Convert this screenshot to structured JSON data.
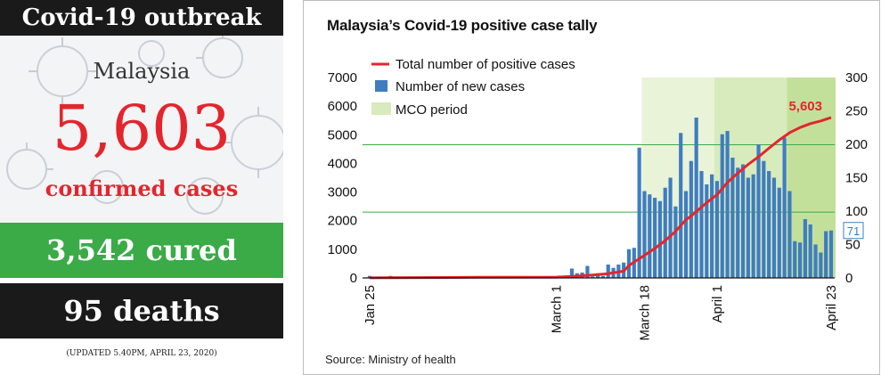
{
  "summary": {
    "title": "Covid-19 outbreak",
    "country": "Malaysia",
    "total": "5,603",
    "confirmed_label": "confirmed cases",
    "cured": "3,542 cured",
    "deaths": "95 deaths",
    "updated": "(UPDATED 5.40PM, APRIL 23, 2020)"
  },
  "colors": {
    "red": "#e3262d",
    "blue": "#3f7dc0",
    "green": "#3aab47",
    "mco_light": "#e9f3d8",
    "mco_mid": "#d8ebbd",
    "mco_dark": "#c3e09a",
    "gridline": "#3aab47"
  },
  "source": "Source: Ministry of health",
  "chart_data": {
    "type": "bar",
    "title": "Malaysia’s Covid-19 positive case tally",
    "legend": {
      "line": "Total number of positive cases",
      "bars": "Number of new cases",
      "band": "MCO period",
      "placement": "top-left"
    },
    "y_left": {
      "ticks": [
        "0",
        "1000",
        "2000",
        "3000",
        "4000",
        "5000",
        "6000",
        "7000"
      ],
      "range": [
        0,
        7000
      ]
    },
    "y_right": {
      "ticks": [
        "0",
        "50",
        "100",
        "150",
        "200",
        "250",
        "300"
      ],
      "range": [
        0,
        300
      ]
    },
    "x_tick_labels": [
      "Jan 25",
      "March 1",
      "March 18",
      "April 1",
      "April 23"
    ],
    "start": "Jan 25",
    "end": "April 23",
    "mco_start": "March 18",
    "mco_phase2_start": "April 1",
    "mco_phase3_start": "April 15",
    "new_cases_note": "bar heights read against right axis",
    "new_cases": [
      {
        "date": "Jan 25",
        "value": 3
      },
      {
        "date": "Jan 26",
        "value": 1
      },
      {
        "date": "Jan 27",
        "value": 0
      },
      {
        "date": "Jan 28",
        "value": 0
      },
      {
        "date": "Jan 29",
        "value": 3
      },
      {
        "date": "Jan 30",
        "value": 0
      },
      {
        "date": "Jan 31",
        "value": 0
      },
      {
        "date": "Feb 1",
        "value": 0
      },
      {
        "date": "Feb 2",
        "value": 0
      },
      {
        "date": "Feb 3",
        "value": 2
      },
      {
        "date": "Feb 4",
        "value": 1
      },
      {
        "date": "Feb 5",
        "value": 1
      },
      {
        "date": "Feb 6",
        "value": 2
      },
      {
        "date": "Feb 7",
        "value": 0
      },
      {
        "date": "Feb 8",
        "value": 1
      },
      {
        "date": "Feb 9",
        "value": 1
      },
      {
        "date": "Feb 10",
        "value": 0
      },
      {
        "date": "Feb 11",
        "value": 0
      },
      {
        "date": "Feb 12",
        "value": 0
      },
      {
        "date": "Feb 13",
        "value": 0
      },
      {
        "date": "Feb 14",
        "value": 0
      },
      {
        "date": "Feb 15",
        "value": 1
      },
      {
        "date": "Feb 16",
        "value": 0
      },
      {
        "date": "Feb 17",
        "value": 0
      },
      {
        "date": "Feb 18",
        "value": 0
      },
      {
        "date": "Feb 19",
        "value": 0
      },
      {
        "date": "Feb 20",
        "value": 0
      },
      {
        "date": "Feb 21",
        "value": 0
      },
      {
        "date": "Feb 22",
        "value": 0
      },
      {
        "date": "Feb 23",
        "value": 0
      },
      {
        "date": "Feb 24",
        "value": 0
      },
      {
        "date": "Feb 25",
        "value": 0
      },
      {
        "date": "Feb 26",
        "value": 0
      },
      {
        "date": "Feb 27",
        "value": 1
      },
      {
        "date": "Feb 28",
        "value": 1
      },
      {
        "date": "Feb 29",
        "value": 0
      },
      {
        "date": "Mar 1",
        "value": 0
      },
      {
        "date": "Mar 2",
        "value": 0
      },
      {
        "date": "Mar 3",
        "value": 0
      },
      {
        "date": "Mar 4",
        "value": 14
      },
      {
        "date": "Mar 5",
        "value": 7
      },
      {
        "date": "Mar 6",
        "value": 8
      },
      {
        "date": "Mar 7",
        "value": 18
      },
      {
        "date": "Mar 8",
        "value": 2
      },
      {
        "date": "Mar 9",
        "value": 7
      },
      {
        "date": "Mar 10",
        "value": 3
      },
      {
        "date": "Mar 11",
        "value": 20
      },
      {
        "date": "Mar 12",
        "value": 15
      },
      {
        "date": "Mar 13",
        "value": 20
      },
      {
        "date": "Mar 14",
        "value": 23
      },
      {
        "date": "Mar 15",
        "value": 43
      },
      {
        "date": "Mar 16",
        "value": 45
      },
      {
        "date": "Mar 17",
        "value": 195
      },
      {
        "date": "Mar 18",
        "value": 130
      },
      {
        "date": "Mar 19",
        "value": 125
      },
      {
        "date": "Mar 20",
        "value": 120
      },
      {
        "date": "Mar 21",
        "value": 115
      },
      {
        "date": "Mar 22",
        "value": 135
      },
      {
        "date": "Mar 23",
        "value": 150
      },
      {
        "date": "Mar 24",
        "value": 107
      },
      {
        "date": "Mar 25",
        "value": 217
      },
      {
        "date": "Mar 26",
        "value": 130
      },
      {
        "date": "Mar 27",
        "value": 175
      },
      {
        "date": "Mar 28",
        "value": 240
      },
      {
        "date": "Mar 29",
        "value": 160
      },
      {
        "date": "Mar 30",
        "value": 140
      },
      {
        "date": "Mar 31",
        "value": 155
      },
      {
        "date": "Apr 1",
        "value": 145
      },
      {
        "date": "Apr 2",
        "value": 215
      },
      {
        "date": "Apr 3",
        "value": 220
      },
      {
        "date": "Apr 4",
        "value": 180
      },
      {
        "date": "Apr 5",
        "value": 165
      },
      {
        "date": "Apr 6",
        "value": 170
      },
      {
        "date": "Apr 7",
        "value": 150
      },
      {
        "date": "Apr 8",
        "value": 155
      },
      {
        "date": "Apr 9",
        "value": 200
      },
      {
        "date": "Apr 10",
        "value": 175
      },
      {
        "date": "Apr 11",
        "value": 160
      },
      {
        "date": "Apr 12",
        "value": 150
      },
      {
        "date": "Apr 13",
        "value": 135
      },
      {
        "date": "Apr 14",
        "value": 210
      },
      {
        "date": "Apr 15",
        "value": 130
      },
      {
        "date": "Apr 16",
        "value": 55
      },
      {
        "date": "Apr 17",
        "value": 53
      },
      {
        "date": "Apr 18",
        "value": 88
      },
      {
        "date": "Apr 19",
        "value": 80
      },
      {
        "date": "Apr 20",
        "value": 50
      },
      {
        "date": "Apr 21",
        "value": 38
      },
      {
        "date": "Apr 22",
        "value": 70
      },
      {
        "date": "Apr 23",
        "value": 71
      }
    ],
    "total_cases": [
      {
        "date": "Jan 25",
        "value": 3
      },
      {
        "date": "Feb 15",
        "value": 22
      },
      {
        "date": "Mar 1",
        "value": 29
      },
      {
        "date": "Mar 4",
        "value": 50
      },
      {
        "date": "Mar 8",
        "value": 99
      },
      {
        "date": "Mar 11",
        "value": 149
      },
      {
        "date": "Mar 14",
        "value": 238
      },
      {
        "date": "Mar 15",
        "value": 428
      },
      {
        "date": "Mar 16",
        "value": 553
      },
      {
        "date": "Mar 17",
        "value": 673
      },
      {
        "date": "Mar 18",
        "value": 790
      },
      {
        "date": "Mar 20",
        "value": 1030
      },
      {
        "date": "Mar 22",
        "value": 1306
      },
      {
        "date": "Mar 24",
        "value": 1624
      },
      {
        "date": "Mar 26",
        "value": 2031
      },
      {
        "date": "Mar 27",
        "value": 2161
      },
      {
        "date": "Mar 28",
        "value": 2320
      },
      {
        "date": "Mar 30",
        "value": 2626
      },
      {
        "date": "Apr 1",
        "value": 2908
      },
      {
        "date": "Apr 3",
        "value": 3333
      },
      {
        "date": "Apr 5",
        "value": 3662
      },
      {
        "date": "Apr 7",
        "value": 3963
      },
      {
        "date": "Apr 9",
        "value": 4228
      },
      {
        "date": "Apr 11",
        "value": 4530
      },
      {
        "date": "Apr 13",
        "value": 4817
      },
      {
        "date": "Apr 15",
        "value": 5072
      },
      {
        "date": "Apr 17",
        "value": 5251
      },
      {
        "date": "Apr 19",
        "value": 5389
      },
      {
        "date": "Apr 21",
        "value": 5482
      },
      {
        "date": "Apr 23",
        "value": 5603
      }
    ],
    "end_label": "5,603",
    "last_new_label": "71",
    "gridlines_left": [
      2300,
      4650
    ]
  }
}
